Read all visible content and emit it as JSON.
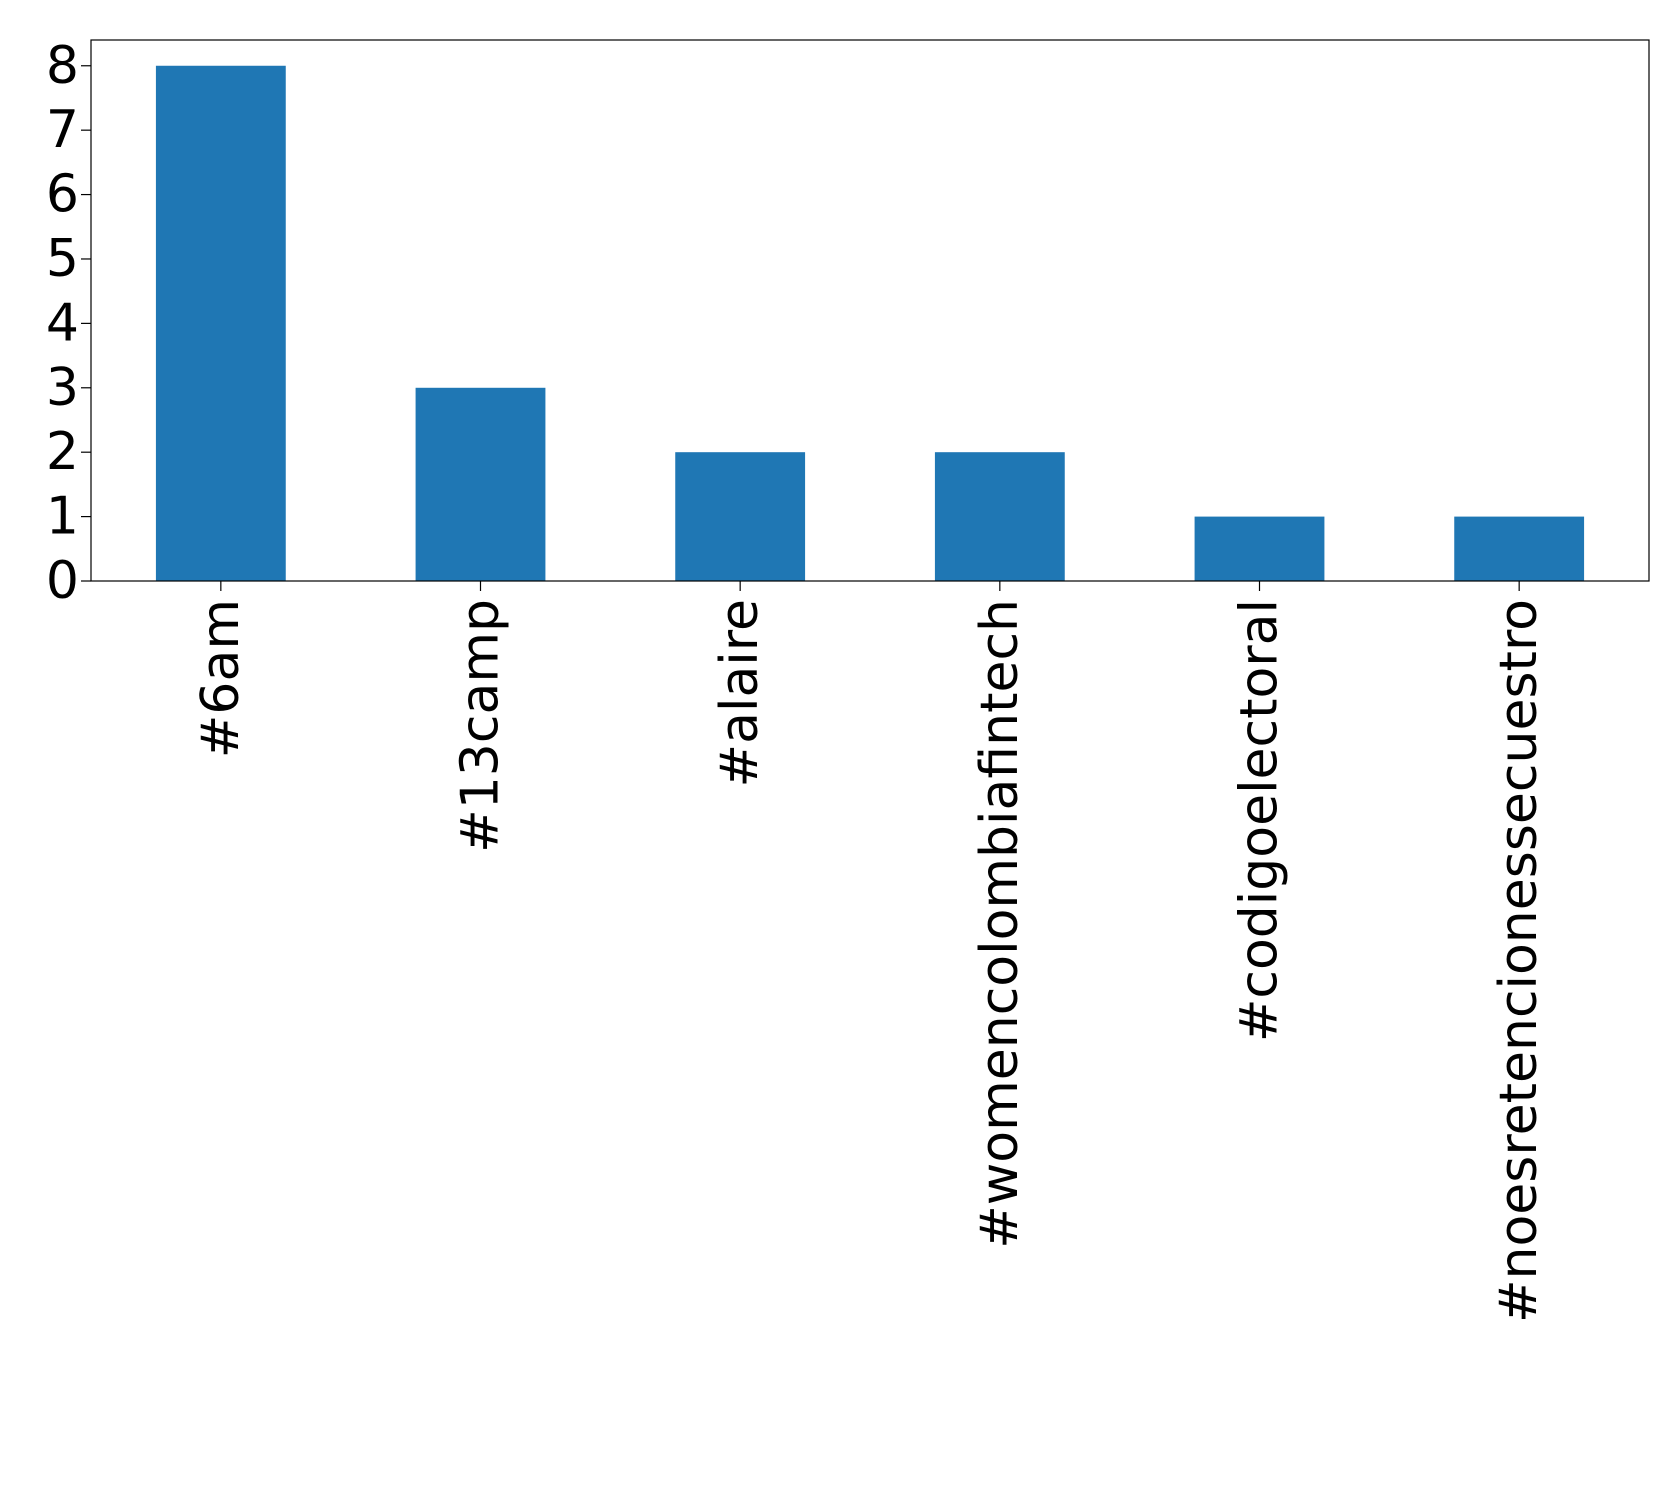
{
  "chart_data": {
    "type": "bar",
    "categories": [
      "#6am",
      "#13camp",
      "#alaire",
      "#womencolombiafintech",
      "#codigoelectoral",
      "#noesretencionessecuestro"
    ],
    "values": [
      8,
      3,
      2,
      2,
      1,
      1
    ],
    "color": "#1f77b4",
    "ylim": [
      0,
      8.4
    ],
    "yticks": [
      0,
      1,
      2,
      3,
      4,
      5,
      6,
      7,
      8
    ],
    "grid": false
  }
}
